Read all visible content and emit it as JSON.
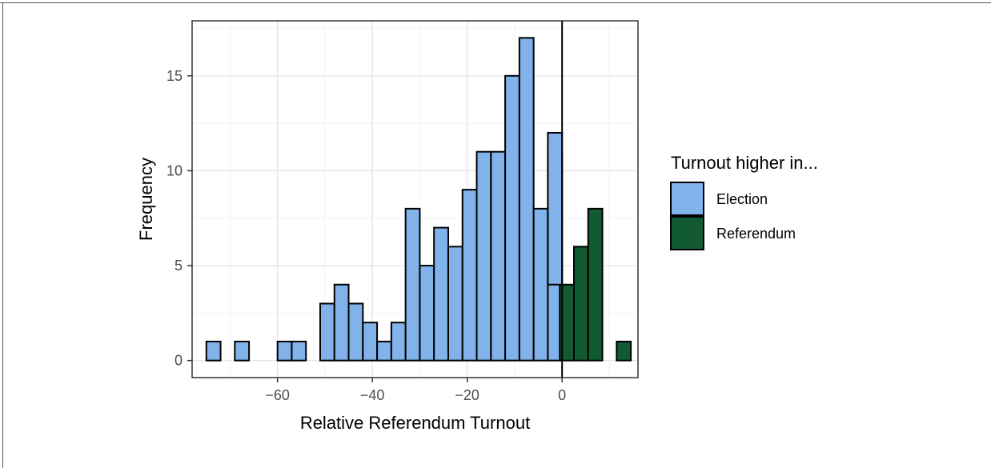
{
  "chart_data": {
    "type": "bar",
    "xlabel": "Relative Referendum Turnout",
    "ylabel": "Frequency",
    "xlim": [
      -78,
      16
    ],
    "ylim": [
      -0.9,
      17.9
    ],
    "x_ticks": [
      -60,
      -40,
      -20,
      0
    ],
    "x_tick_labels": [
      "−60",
      "−40",
      "−20",
      "0"
    ],
    "y_ticks": [
      0,
      5,
      10,
      15
    ],
    "y_tick_labels": [
      "0",
      "5",
      "10",
      "15"
    ],
    "grid": true,
    "bin_width": 3,
    "vline_x": 0,
    "legend": {
      "title": "Turnout higher in...",
      "placement": "right",
      "entries": [
        {
          "label": "Election",
          "color": "#82b2ea"
        },
        {
          "label": "Referendum",
          "color": "#125b32"
        }
      ]
    },
    "series": [
      {
        "name": "Election",
        "color": "#82b2ea",
        "bins": [
          {
            "x0": -75,
            "x1": -72,
            "value": 1
          },
          {
            "x0": -72,
            "x1": -69,
            "value": 0
          },
          {
            "x0": -69,
            "x1": -66,
            "value": 1
          },
          {
            "x0": -66,
            "x1": -63,
            "value": 0
          },
          {
            "x0": -63,
            "x1": -60,
            "value": 0
          },
          {
            "x0": -60,
            "x1": -57,
            "value": 1
          },
          {
            "x0": -57,
            "x1": -54,
            "value": 1
          },
          {
            "x0": -54,
            "x1": -51,
            "value": 0
          },
          {
            "x0": -51,
            "x1": -48,
            "value": 3
          },
          {
            "x0": -48,
            "x1": -45,
            "value": 4
          },
          {
            "x0": -45,
            "x1": -42,
            "value": 3
          },
          {
            "x0": -42,
            "x1": -39,
            "value": 2
          },
          {
            "x0": -39,
            "x1": -36,
            "value": 1
          },
          {
            "x0": -36,
            "x1": -33,
            "value": 2
          },
          {
            "x0": -33,
            "x1": -30,
            "value": 8
          },
          {
            "x0": -30,
            "x1": -27,
            "value": 5
          },
          {
            "x0": -27,
            "x1": -24,
            "value": 7
          },
          {
            "x0": -24,
            "x1": -21,
            "value": 6
          },
          {
            "x0": -21,
            "x1": -18,
            "value": 9
          },
          {
            "x0": -18,
            "x1": -15,
            "value": 11
          },
          {
            "x0": -15,
            "x1": -12,
            "value": 11
          },
          {
            "x0": -12,
            "x1": -9,
            "value": 15
          },
          {
            "x0": -9,
            "x1": -6,
            "value": 17
          },
          {
            "x0": -6,
            "x1": -3,
            "value": 8
          },
          {
            "x0": -3,
            "x1": 0,
            "value": 11
          },
          {
            "x0": 0,
            "x1": 0,
            "value": 0
          }
        ]
      },
      {
        "name": "Referendum",
        "color": "#125b32",
        "bins": [
          {
            "x0": -0.5,
            "x1": 2.5,
            "value": 4
          },
          {
            "x0": 2.5,
            "x1": 5.5,
            "value": 6
          },
          {
            "x0": 5.5,
            "x1": 8.5,
            "value": 8
          },
          {
            "x0": 8.5,
            "x1": 11.5,
            "value": 0
          },
          {
            "x0": 11.5,
            "x1": 14.5,
            "value": 1
          }
        ]
      }
    ],
    "stacked_bins": [
      {
        "x0": -0.5,
        "x1": 0,
        "election": 12,
        "note_total": ""
      }
    ]
  }
}
